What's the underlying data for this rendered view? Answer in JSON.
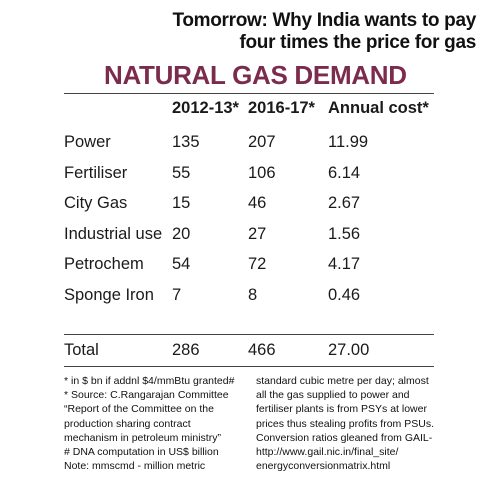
{
  "teaser": {
    "line1": "Tomorrow: Why India wants to pay",
    "line2": "four times the price for gas"
  },
  "chart_data": {
    "type": "table",
    "title": "NATURAL GAS DEMAND",
    "columns": [
      "2012-13*",
      "2016-17*",
      "Annual cost*"
    ],
    "rows": [
      {
        "label": "Power",
        "values": [
          "135",
          "207",
          "11.99"
        ]
      },
      {
        "label": "Fertiliser",
        "values": [
          "55",
          "106",
          "6.14"
        ]
      },
      {
        "label": "City Gas",
        "values": [
          "15",
          "46",
          "2.67"
        ]
      },
      {
        "label": "Industrial use",
        "values": [
          "20",
          "27",
          "1.56"
        ]
      },
      {
        "label": "Petrochem",
        "values": [
          "54",
          "72",
          "4.17"
        ]
      },
      {
        "label": "Sponge Iron",
        "values": [
          "7",
          "8",
          "0.46"
        ]
      }
    ],
    "total": {
      "label": "Total",
      "values": [
        "286",
        "466",
        "27.00"
      ]
    }
  },
  "notes": {
    "left": [
      "* in $ bn if addnl $4/mmBtu granted#",
      "* Source: C.Rangarajan Committee",
      "“Report of the Committee on the",
      "production sharing contract",
      "mechanism in petroleum ministry”",
      "# DNA computation in US$ billion",
      "Note: mmscmd - million metric"
    ],
    "right": [
      "standard cubic metre per day; almost",
      "all the gas supplied to power and",
      "fertiliser plants is from PSYs at lower",
      "prices thus stealing profits from PSUs.",
      "Conversion ratios gleaned from GAIL-",
      "http://www.gail.nic.in/final_site/",
      "energyconversionmatrix.html"
    ]
  }
}
